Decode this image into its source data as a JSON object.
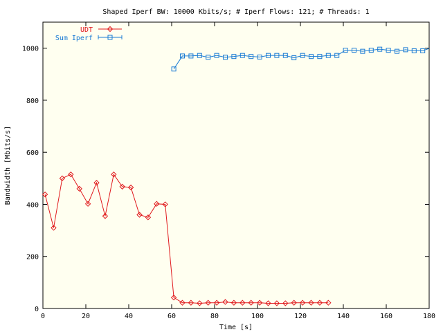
{
  "chart_data": {
    "type": "line",
    "title": "Shaped Iperf BW: 10000 Kbits/s; # Iperf Flows: 121; # Threads: 1",
    "xlabel": "Time [s]",
    "ylabel": "Bandwidth [Mbits/s]",
    "xlim": [
      0,
      180
    ],
    "ylim": [
      0,
      1100
    ],
    "xticks": [
      0,
      20,
      40,
      60,
      80,
      100,
      120,
      140,
      160,
      180
    ],
    "yticks": [
      0,
      200,
      400,
      600,
      800,
      1000
    ],
    "grid": false,
    "legend_position": "top-left",
    "background": "#fffff0",
    "series": [
      {
        "name": "UDT",
        "color": "#e0191c",
        "marker": "diamond",
        "x": [
          1,
          5,
          9,
          13,
          17,
          21,
          25,
          29,
          33,
          37,
          41,
          45,
          49,
          53,
          57,
          61,
          65,
          69,
          73,
          77,
          81,
          85,
          89,
          93,
          97,
          101,
          105,
          109,
          113,
          117,
          121,
          125,
          129,
          133
        ],
        "y": [
          438,
          310,
          500,
          515,
          460,
          402,
          483,
          355,
          515,
          468,
          465,
          360,
          350,
          402,
          400,
          42,
          22,
          22,
          20,
          22,
          22,
          25,
          22,
          22,
          22,
          22,
          20,
          20,
          20,
          22,
          22,
          22,
          22,
          22
        ]
      },
      {
        "name": "Sum Iperf",
        "color": "#1a7bd4",
        "marker": "square",
        "x": [
          61,
          65,
          69,
          73,
          77,
          81,
          85,
          89,
          93,
          97,
          101,
          105,
          109,
          113,
          117,
          121,
          125,
          129,
          133,
          137,
          141,
          145,
          149,
          153,
          157,
          161,
          165,
          169,
          173,
          177,
          181
        ],
        "y": [
          920,
          970,
          970,
          972,
          965,
          972,
          965,
          968,
          972,
          968,
          966,
          972,
          972,
          972,
          963,
          972,
          968,
          968,
          972,
          972,
          992,
          992,
          988,
          992,
          996,
          992,
          988,
          994,
          990,
          990,
          999
        ]
      }
    ]
  }
}
